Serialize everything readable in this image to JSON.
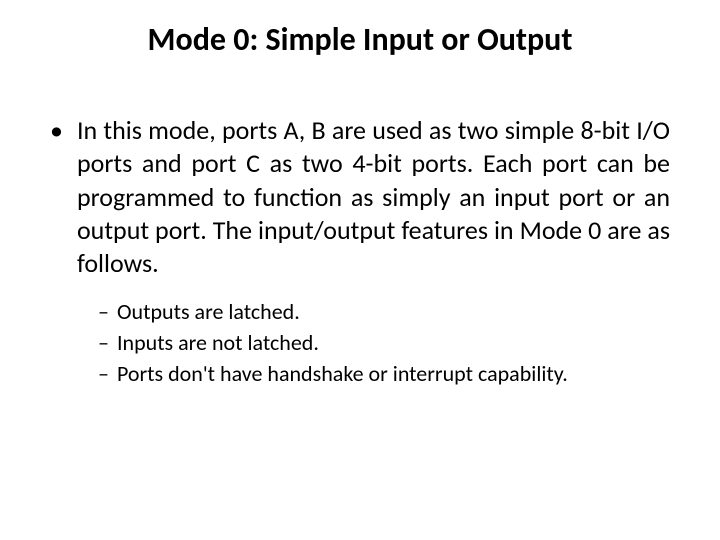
{
  "title": "Mode 0: Simple Input or Output",
  "mainBullet": "In this mode, ports A, B are used as two simple 8-bit I/O ports and port C as two 4-bit ports. Each port can be programmed to function as simply an input port or an output port. The input/output features in Mode 0 are as follows.",
  "subBullets": {
    "item0": "Outputs are latched.",
    "item1": "Inputs are not latched.",
    "item2": "Ports don't have handshake or interrupt capability."
  },
  "colors": {
    "background": "#ffffff",
    "text": "#000000"
  },
  "typography": {
    "titleSize": 32,
    "bodySize": 26,
    "subSize": 22,
    "fontFamily": "Calibri"
  }
}
